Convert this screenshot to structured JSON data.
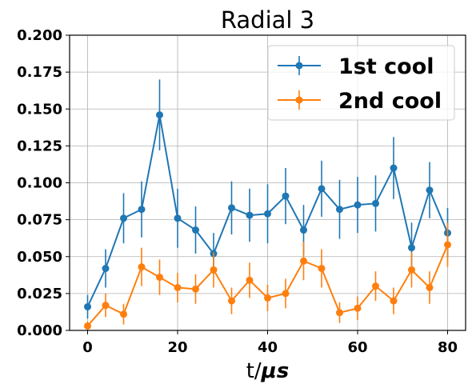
{
  "chart_data": {
    "type": "line",
    "title": "Radial 3",
    "xlabel": "t/",
    "xlabel_symbol": "μs",
    "ylabel": "",
    "xlim": [
      -4,
      84
    ],
    "ylim": [
      0,
      0.2
    ],
    "xticks": [
      "0",
      "20",
      "40",
      "60",
      "80"
    ],
    "yticks": [
      "0.000",
      "0.025",
      "0.050",
      "0.075",
      "0.100",
      "0.125",
      "0.150",
      "0.175",
      "0.200"
    ],
    "grid": true,
    "legend_position": "top-right",
    "x": [
      0,
      4,
      8,
      12,
      16,
      20,
      24,
      28,
      32,
      36,
      40,
      44,
      48,
      52,
      56,
      60,
      64,
      68,
      72,
      76,
      80
    ],
    "series": [
      {
        "name": "1st cool",
        "color": "#1f77b4",
        "values": [
          0.016,
          0.042,
          0.076,
          0.082,
          0.146,
          0.076,
          0.068,
          0.052,
          0.083,
          0.078,
          0.079,
          0.091,
          0.068,
          0.096,
          0.082,
          0.085,
          0.086,
          0.11,
          0.056,
          0.095,
          0.066
        ],
        "errors": [
          0.008,
          0.013,
          0.017,
          0.019,
          0.024,
          0.02,
          0.016,
          0.014,
          0.018,
          0.018,
          0.02,
          0.019,
          0.017,
          0.019,
          0.02,
          0.019,
          0.019,
          0.021,
          0.017,
          0.019,
          0.017
        ]
      },
      {
        "name": "2nd cool",
        "color": "#ff7f0e",
        "values": [
          0.003,
          0.017,
          0.011,
          0.043,
          0.036,
          0.029,
          0.028,
          0.041,
          0.02,
          0.034,
          0.022,
          0.025,
          0.047,
          0.042,
          0.012,
          0.015,
          0.03,
          0.02,
          0.041,
          0.029,
          0.058
        ],
        "errors": [
          0.003,
          0.008,
          0.007,
          0.013,
          0.012,
          0.01,
          0.01,
          0.012,
          0.009,
          0.012,
          0.009,
          0.01,
          0.013,
          0.013,
          0.007,
          0.008,
          0.01,
          0.009,
          0.012,
          0.011,
          0.015
        ]
      }
    ]
  }
}
